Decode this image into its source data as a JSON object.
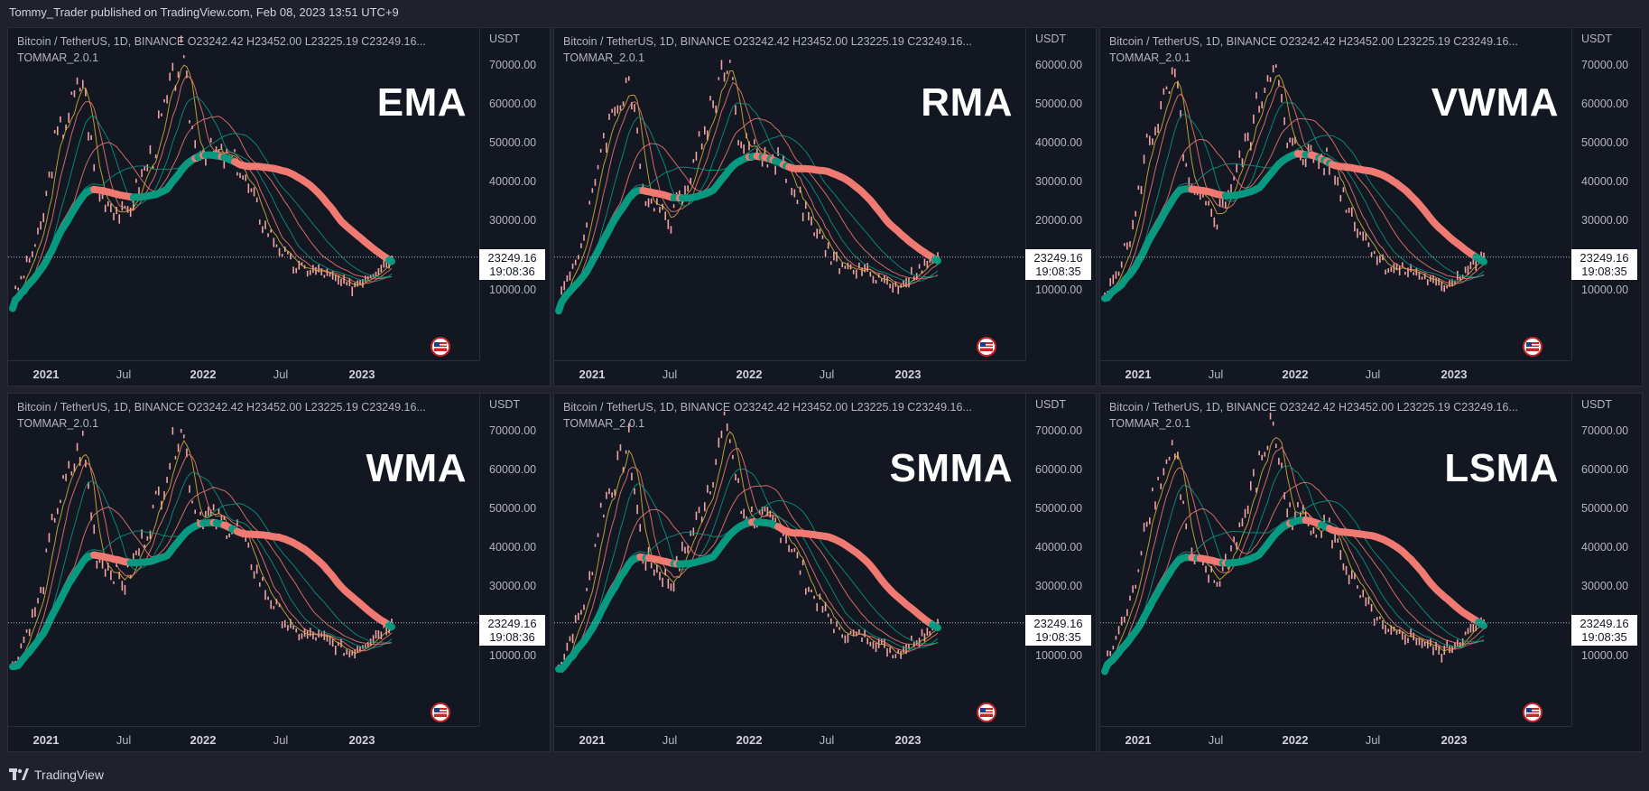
{
  "header": {
    "published": "Tommy_Trader published on TradingView.com, Feb 08, 2023 13:51 UTC+9"
  },
  "footer": {
    "brand": "TradingView"
  },
  "colors": {
    "background": "#131722",
    "candle": "#f0a3a3",
    "bullish_ma": "#089981",
    "bearish_ma": "#f07a72",
    "yellow_ma": "#d9b33a"
  },
  "chart_data": [
    {
      "type": "line",
      "title": "Bitcoin / TetherUS, 1D, BINANCE  O23242.42  H23452.00  L23225.19  C23249.16...",
      "indicator": "TOMMAR_2.0.1",
      "ma_type": "EMA",
      "currency": "USDT",
      "x_ticks": [
        "2021",
        "Jul",
        "2022",
        "Jul",
        "2023"
      ],
      "y_ticks": [
        "70000.00",
        "60000.00",
        "50000.00",
        "40000.00",
        "30000.00",
        "10000.00"
      ],
      "price_label": "23249.16",
      "time_label": "19:08:36",
      "x": [
        "2020-11",
        "2021-01",
        "2021-02",
        "2021-04",
        "2021-05",
        "2021-07",
        "2021-09",
        "2021-11",
        "2021-12",
        "2022-03",
        "2022-05",
        "2022-07",
        "2022-09",
        "2022-11",
        "2023-02"
      ],
      "series": [
        {
          "values": [
            13500,
            29000,
            48000,
            63000,
            38000,
            32000,
            47000,
            68000,
            48000,
            44000,
            30000,
            21000,
            20000,
            16500,
            23249
          ]
        }
      ]
    },
    {
      "type": "line",
      "title": "Bitcoin / TetherUS, 1D, BINANCE  O23242.42  H23452.00  L23225.19  C23249.16...",
      "indicator": "TOMMAR_2.0.1",
      "ma_type": "RMA",
      "currency": "USDT",
      "x_ticks": [
        "2021",
        "Jul",
        "2022",
        "Jul",
        "2023"
      ],
      "y_ticks": [
        "60000.00",
        "50000.00",
        "40000.00",
        "30000.00",
        "20000.00",
        "10000.00"
      ],
      "price_label": "23249.16",
      "time_label": "19:08:35",
      "x": [
        "2020-11",
        "2021-01",
        "2021-02",
        "2021-04",
        "2021-05",
        "2021-07",
        "2021-09",
        "2021-11",
        "2021-12",
        "2022-03",
        "2022-05",
        "2022-07",
        "2022-09",
        "2022-11",
        "2023-02"
      ],
      "series": [
        {
          "values": [
            13500,
            29000,
            48000,
            63000,
            38000,
            32000,
            47000,
            68000,
            48000,
            44000,
            30000,
            21000,
            20000,
            16500,
            23249
          ]
        }
      ]
    },
    {
      "type": "line",
      "title": "Bitcoin / TetherUS, 1D, BINANCE  O23242.42  H23452.00  L23225.19  C23249.16...",
      "indicator": "TOMMAR_2.0.1",
      "ma_type": "VWMA",
      "currency": "USDT",
      "x_ticks": [
        "2021",
        "Jul",
        "2022",
        "Jul",
        "2023"
      ],
      "y_ticks": [
        "70000.00",
        "60000.00",
        "50000.00",
        "40000.00",
        "30000.00",
        "10000.00"
      ],
      "price_label": "23249.16",
      "time_label": "19:08:35",
      "x": [
        "2020-11",
        "2021-01",
        "2021-02",
        "2021-04",
        "2021-05",
        "2021-07",
        "2021-09",
        "2021-11",
        "2021-12",
        "2022-03",
        "2022-05",
        "2022-07",
        "2022-09",
        "2022-11",
        "2023-02"
      ],
      "series": [
        {
          "values": [
            13500,
            29000,
            48000,
            63000,
            38000,
            32000,
            47000,
            68000,
            48000,
            44000,
            30000,
            21000,
            20000,
            16500,
            23249
          ]
        }
      ]
    },
    {
      "type": "line",
      "title": "Bitcoin / TetherUS, 1D, BINANCE  O23242.42  H23452.00  L23225.19  C23249.16...",
      "indicator": "TOMMAR_2.0.1",
      "ma_type": "WMA",
      "currency": "USDT",
      "x_ticks": [
        "2021",
        "Jul",
        "2022",
        "Jul",
        "2023"
      ],
      "y_ticks": [
        "70000.00",
        "60000.00",
        "50000.00",
        "40000.00",
        "30000.00",
        "10000.00"
      ],
      "price_label": "23249.16",
      "time_label": "19:08:36",
      "x": [
        "2020-11",
        "2021-01",
        "2021-02",
        "2021-04",
        "2021-05",
        "2021-07",
        "2021-09",
        "2021-11",
        "2021-12",
        "2022-03",
        "2022-05",
        "2022-07",
        "2022-09",
        "2022-11",
        "2023-02"
      ],
      "series": [
        {
          "values": [
            13500,
            29000,
            48000,
            63000,
            38000,
            32000,
            47000,
            68000,
            48000,
            44000,
            30000,
            21000,
            20000,
            16500,
            23249
          ]
        }
      ]
    },
    {
      "type": "line",
      "title": "Bitcoin / TetherUS, 1D, BINANCE  O23242.42  H23452.00  L23225.19  C23249.16...",
      "indicator": "TOMMAR_2.0.1",
      "ma_type": "SMMA",
      "currency": "USDT",
      "x_ticks": [
        "2021",
        "Jul",
        "2022",
        "Jul",
        "2023"
      ],
      "y_ticks": [
        "70000.00",
        "60000.00",
        "50000.00",
        "40000.00",
        "30000.00",
        "10000.00"
      ],
      "price_label": "23249.16",
      "time_label": "19:08:35",
      "x": [
        "2020-11",
        "2021-01",
        "2021-02",
        "2021-04",
        "2021-05",
        "2021-07",
        "2021-09",
        "2021-11",
        "2021-12",
        "2022-03",
        "2022-05",
        "2022-07",
        "2022-09",
        "2022-11",
        "2023-02"
      ],
      "series": [
        {
          "values": [
            13500,
            29000,
            48000,
            63000,
            38000,
            32000,
            47000,
            68000,
            48000,
            44000,
            30000,
            21000,
            20000,
            16500,
            23249
          ]
        }
      ]
    },
    {
      "type": "line",
      "title": "Bitcoin / TetherUS, 1D, BINANCE  O23242.42  H23452.00  L23225.19  C23249.16...",
      "indicator": "TOMMAR_2.0.1",
      "ma_type": "LSMA",
      "currency": "USDT",
      "x_ticks": [
        "2021",
        "Jul",
        "2022",
        "Jul",
        "2023"
      ],
      "y_ticks": [
        "70000.00",
        "60000.00",
        "50000.00",
        "40000.00",
        "30000.00",
        "10000.00"
      ],
      "price_label": "23249.16",
      "time_label": "19:08:35",
      "x": [
        "2020-11",
        "2021-01",
        "2021-02",
        "2021-04",
        "2021-05",
        "2021-07",
        "2021-09",
        "2021-11",
        "2021-12",
        "2022-03",
        "2022-05",
        "2022-07",
        "2022-09",
        "2022-11",
        "2023-02"
      ],
      "series": [
        {
          "values": [
            13500,
            29000,
            48000,
            63000,
            38000,
            32000,
            47000,
            68000,
            48000,
            44000,
            30000,
            21000,
            20000,
            16500,
            23249
          ]
        }
      ]
    }
  ]
}
